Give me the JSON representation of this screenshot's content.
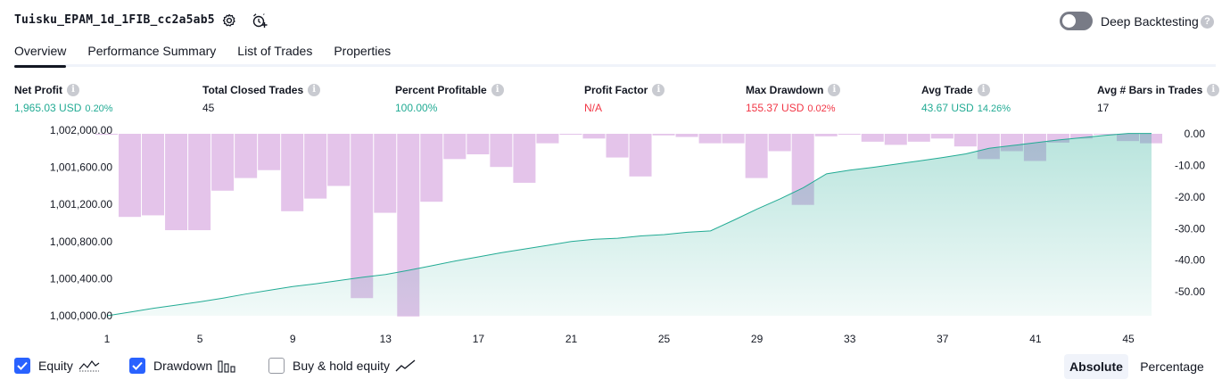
{
  "header": {
    "title": "Tuisku_EPAM_1d_1FIB_cc2a5ab5",
    "settings_icon": "gear-icon",
    "alert_icon": "alarm-add-icon",
    "deep_backtesting": {
      "label": "Deep Backtesting",
      "enabled": false,
      "help_icon": "question-icon"
    }
  },
  "tabs": [
    {
      "label": "Overview",
      "active": true
    },
    {
      "label": "Performance Summary",
      "active": false
    },
    {
      "label": "List of Trades",
      "active": false
    },
    {
      "label": "Properties",
      "active": false
    }
  ],
  "stats": {
    "net_profit": {
      "label": "Net Profit",
      "value": "1,965.03 USD",
      "pct": "0.20%"
    },
    "total_closed_trades": {
      "label": "Total Closed Trades",
      "value": "45"
    },
    "percent_profitable": {
      "label": "Percent Profitable",
      "value": "100.00%"
    },
    "profit_factor": {
      "label": "Profit Factor",
      "value": "N/A"
    },
    "max_drawdown": {
      "label": "Max Drawdown",
      "value": "155.37 USD",
      "pct": "0.02%"
    },
    "avg_trade": {
      "label": "Avg Trade",
      "value": "43.67 USD",
      "pct": "14.26%"
    },
    "avg_bars": {
      "label": "Avg # Bars in Trades",
      "value": "17"
    }
  },
  "colors": {
    "equity_line": "#22ab94",
    "equity_fill": "#22ab94",
    "drawdown_bar": "#ce93d8",
    "positive": "#22ab94",
    "negative": "#f23645",
    "checkbox": "#2962ff"
  },
  "chart_data": {
    "type": "line",
    "x": [
      1,
      2,
      3,
      4,
      5,
      6,
      7,
      8,
      9,
      10,
      11,
      12,
      13,
      14,
      15,
      16,
      17,
      18,
      19,
      20,
      21,
      22,
      23,
      24,
      25,
      26,
      27,
      28,
      29,
      30,
      31,
      32,
      33,
      34,
      35,
      36,
      37,
      38,
      39,
      40,
      41,
      42,
      43,
      44,
      45,
      46
    ],
    "xticks": [
      "1",
      "5",
      "9",
      "13",
      "17",
      "21",
      "25",
      "29",
      "33",
      "37",
      "41",
      "45"
    ],
    "xtick_values": [
      1,
      5,
      9,
      13,
      17,
      21,
      25,
      29,
      33,
      37,
      41,
      45
    ],
    "left_axis": {
      "ylim": [
        1000000,
        1002000
      ],
      "ticks": [
        "1,000,000.00",
        "1,000,400.00",
        "1,000,800.00",
        "1,001,200.00",
        "1,001,600.00",
        "1,002,000.00"
      ],
      "tick_values": [
        1000000,
        1000400,
        1000800,
        1001200,
        1001600,
        1002000
      ]
    },
    "right_axis": {
      "ylim": [
        -58,
        0
      ],
      "ticks": [
        "0.00",
        "-10.00",
        "-20.00",
        "-30.00",
        "-40.00",
        "-50.00"
      ],
      "tick_values": [
        0,
        -10,
        -20,
        -30,
        -40,
        -50
      ]
    },
    "series": [
      {
        "name": "Equity",
        "axis": "left",
        "values": [
          1000000,
          1000040,
          1000080,
          1000115,
          1000150,
          1000190,
          1000235,
          1000275,
          1000315,
          1000345,
          1000380,
          1000415,
          1000445,
          1000490,
          1000540,
          1000590,
          1000635,
          1000680,
          1000720,
          1000760,
          1000800,
          1000825,
          1000835,
          1000860,
          1000875,
          1000900,
          1000915,
          1001030,
          1001150,
          1001260,
          1001380,
          1001530,
          1001570,
          1001600,
          1001635,
          1001670,
          1001705,
          1001745,
          1001805,
          1001835,
          1001865,
          1001895,
          1001920,
          1001945,
          1001965,
          1001965
        ]
      },
      {
        "name": "Drawdown",
        "axis": "right",
        "values": [
          -0.2,
          -26.3,
          -25.8,
          -30.5,
          -30.5,
          -18,
          -14,
          -11.5,
          -24.5,
          -20.5,
          -16.5,
          -52,
          -25,
          -57.8,
          -21.5,
          -8,
          -6.5,
          -10.5,
          -15.5,
          -3,
          0,
          -1.5,
          -7.5,
          -13.5,
          -0.5,
          -1,
          -3,
          -3,
          -14,
          -5.5,
          -22.5,
          -0.8,
          -0.2,
          -2.5,
          -3.5,
          -2.5,
          -1.5,
          -4,
          -8,
          -5.5,
          -8.6,
          -2.8,
          -1.5,
          -0.3,
          -2.3,
          -3
        ]
      }
    ]
  },
  "legend": [
    {
      "label": "Equity",
      "checked": true,
      "icon": "equity-line-icon"
    },
    {
      "label": "Drawdown",
      "checked": true,
      "icon": "bars-icon"
    },
    {
      "label": "Buy & hold equity",
      "checked": false,
      "icon": "trend-line-icon"
    }
  ],
  "view_toggle": {
    "absolute": "Absolute",
    "percentage": "Percentage",
    "selected": "Absolute"
  }
}
